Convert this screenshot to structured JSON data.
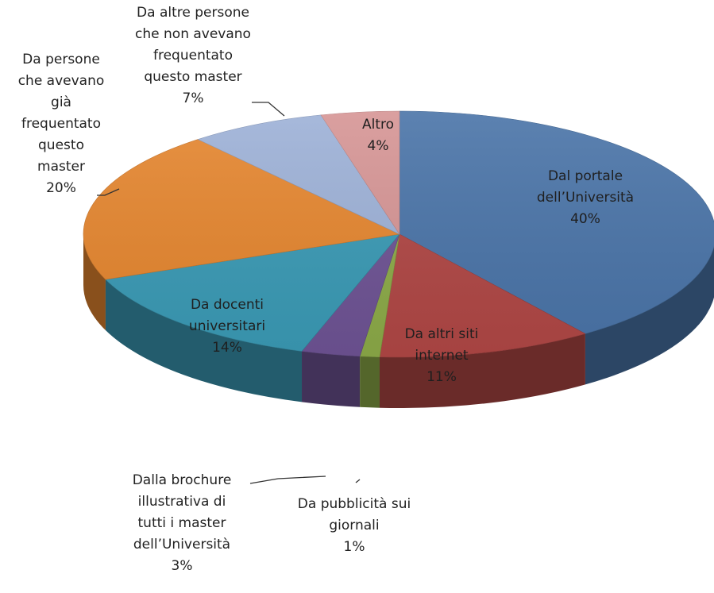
{
  "chart_data": {
    "type": "pie",
    "title": "",
    "style": "3d",
    "slices": [
      {
        "lines": [
          "Dal portale",
          "dell’Università"
        ],
        "pct_label": "40%",
        "value": 40,
        "color": "#4a74a8"
      },
      {
        "lines": [
          "Da altri siti",
          "internet"
        ],
        "pct_label": "11%",
        "value": 11,
        "color": "#b04745"
      },
      {
        "lines": [
          "Da pubblicità sui",
          "giornali"
        ],
        "pct_label": "1%",
        "value": 1,
        "color": "#8caa48"
      },
      {
        "lines": [
          "Dalla brochure",
          "illustrativa di",
          "tutti i master",
          "dell’Università"
        ],
        "pct_label": "3%",
        "value": 3,
        "color": "#6e5394"
      },
      {
        "lines": [
          "Da docenti",
          "universitari"
        ],
        "pct_label": "14%",
        "value": 14,
        "color": "#3a9ab5"
      },
      {
        "lines": [
          "Da persone",
          "che avevano",
          "già",
          "frequentato",
          "questo",
          "master"
        ],
        "pct_label": "20%",
        "value": 20,
        "color": "#e5862f"
      },
      {
        "lines": [
          "Da altre persone",
          "che non avevano",
          "frequentato",
          "questo master"
        ],
        "pct_label": "7%",
        "value": 7,
        "color": "#9db1d7"
      },
      {
        "lines": [
          "Altro"
        ],
        "pct_label": "4%",
        "value": 4,
        "color": "#d69595"
      }
    ]
  }
}
